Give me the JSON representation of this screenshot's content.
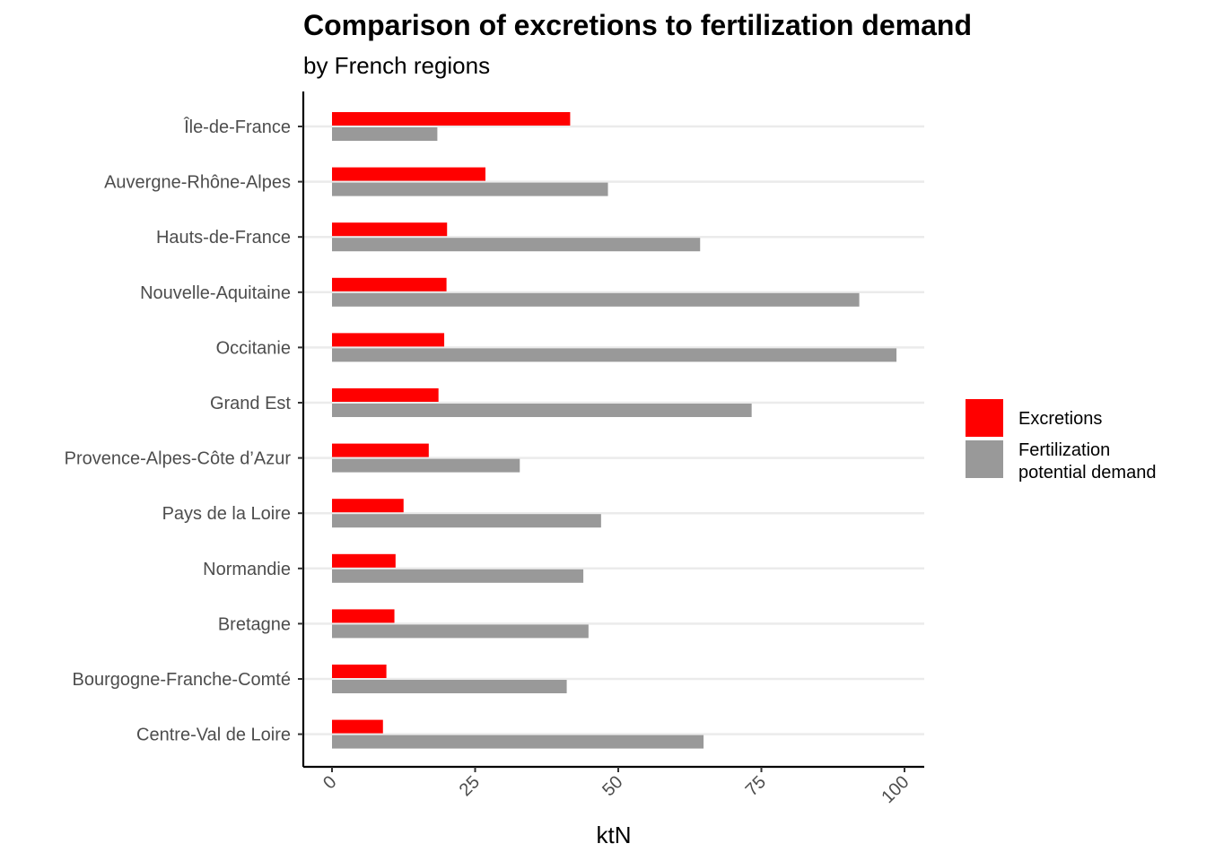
{
  "chart_data": {
    "type": "bar",
    "orientation": "horizontal",
    "title": "Comparison of excretions to fertilization demand",
    "subtitle": "by French regions",
    "xlabel": "ktN",
    "ylabel": "",
    "xlim": [
      -5,
      104
    ],
    "xticks": [
      0,
      25,
      50,
      75,
      100
    ],
    "grid": "horizontal major lines",
    "legend_position": "right",
    "categories": [
      "Île-de-France",
      "Auvergne-Rhône-Alpes",
      "Hauts-de-France",
      "Nouvelle-Aquitaine",
      "Occitanie",
      "Grand Est",
      "Provence-Alpes-Côte d’Azur",
      "Pays de la Loire",
      "Normandie",
      "Bretagne",
      "Bourgogne-Franche-Comté",
      "Centre-Val de Loire"
    ],
    "series": [
      {
        "name": "Excretions",
        "color": "#ff0000",
        "values": [
          41.6,
          26.8,
          20.1,
          20.0,
          19.6,
          18.6,
          16.9,
          12.5,
          11.1,
          10.9,
          9.5,
          8.9
        ]
      },
      {
        "name": "Fertilization potential demand",
        "color": "#999999",
        "values": [
          18.4,
          48.2,
          64.3,
          92.1,
          98.6,
          73.3,
          32.8,
          47.0,
          43.9,
          44.8,
          41.0,
          64.9
        ]
      }
    ]
  }
}
